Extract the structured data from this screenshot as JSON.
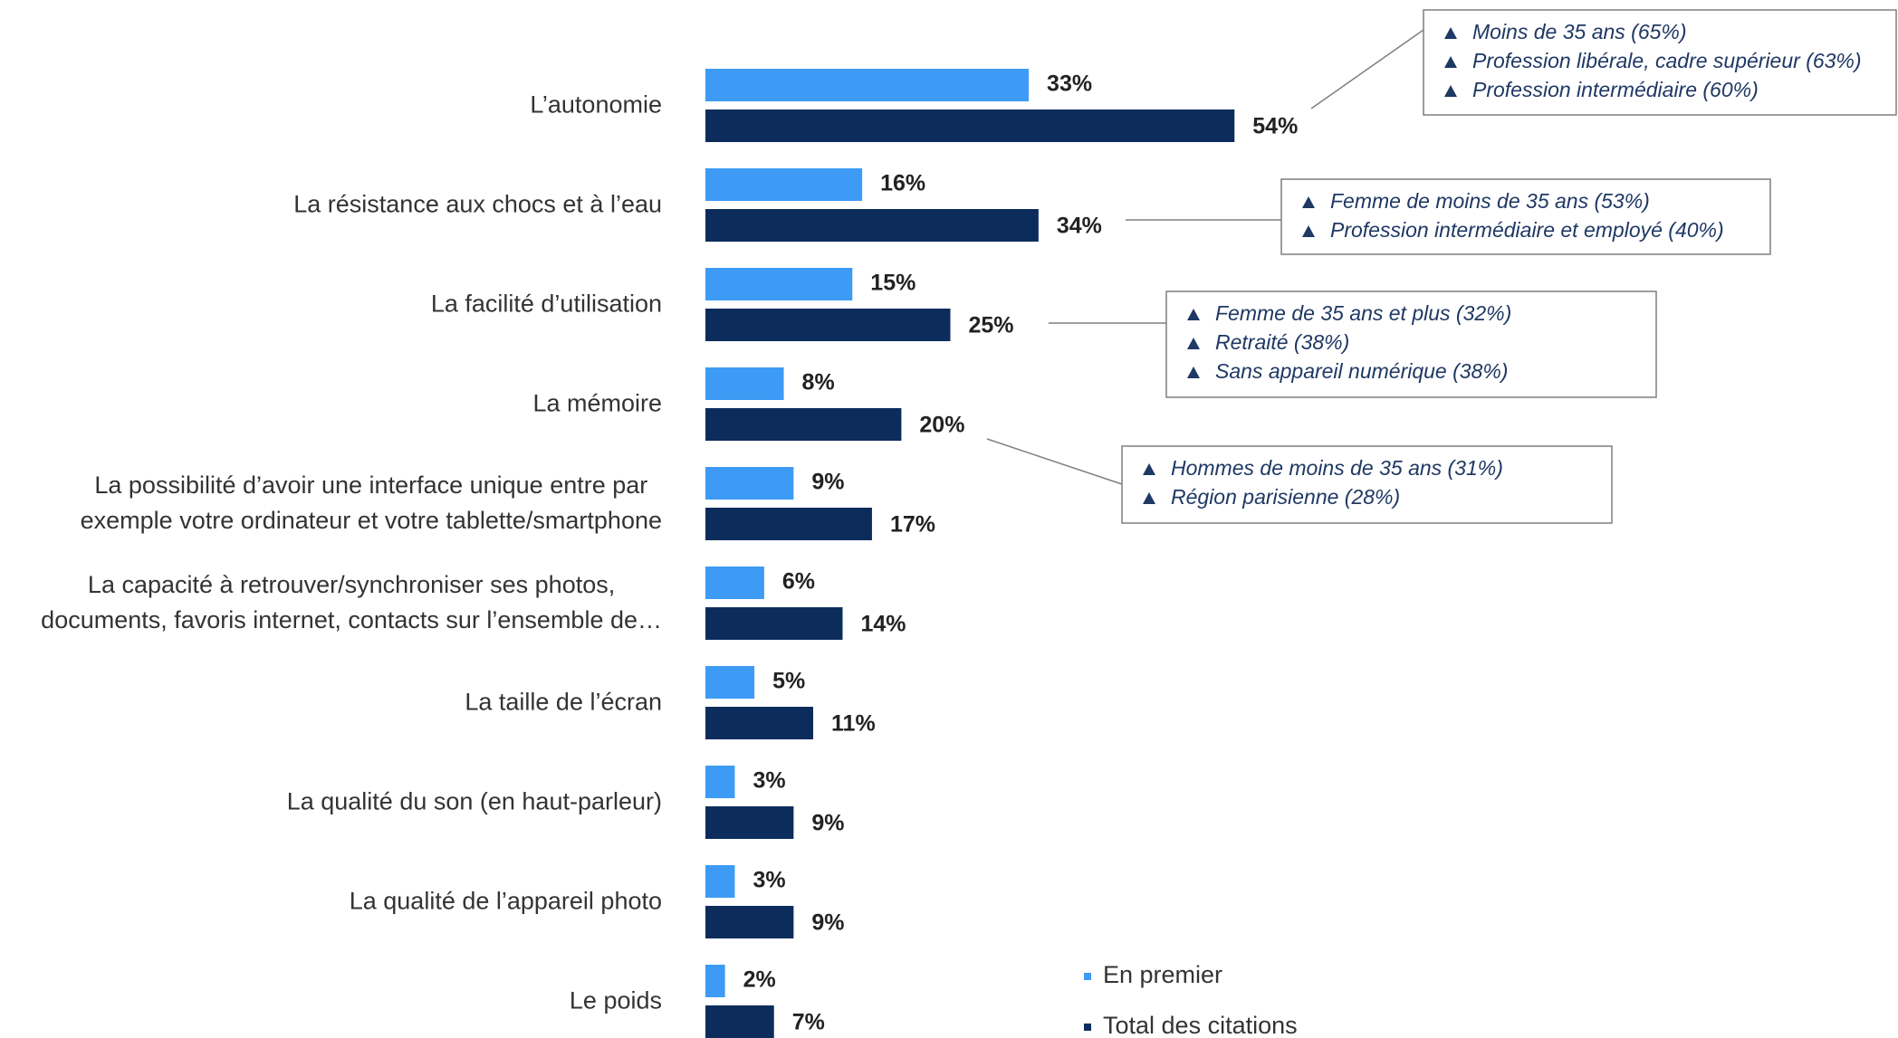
{
  "chart_data": {
    "type": "bar",
    "orientation": "horizontal",
    "categories": [
      "L’autonomie",
      "La résistance aux chocs et à l’eau",
      "La facilité d’utilisation",
      "La mémoire",
      "La possibilité d’avoir une interface unique entre par\nexemple votre ordinateur et votre tablette/smartphone",
      "La capacité à retrouver/synchroniser ses photos,\ndocuments, favoris internet, contacts sur l’ensemble de…",
      "La taille de l’écran",
      "La qualité du son (en haut-parleur)",
      "La qualité de l’appareil photo",
      "Le poids"
    ],
    "series": [
      {
        "name": "En premier",
        "color": "#3d9bf5",
        "values": [
          33,
          16,
          15,
          8,
          9,
          6,
          5,
          3,
          3,
          2
        ],
        "value_labels": [
          "33%",
          "16%",
          "15%",
          "8%",
          "9%",
          "6%",
          "5%",
          "3%",
          "3%",
          "2%"
        ]
      },
      {
        "name": "Total des citations",
        "color": "#0c2d5c",
        "values": [
          54,
          34,
          25,
          20,
          17,
          14,
          11,
          9,
          9,
          7
        ],
        "value_labels": [
          "54%",
          "34%",
          "25%",
          "20%",
          "17%",
          "14%",
          "11%",
          "9%",
          "9%",
          "7%"
        ]
      }
    ],
    "annotations": [
      {
        "items": [
          "Moins de 35 ans (65%)",
          "Profession libérale, cadre supérieur (63%)",
          "Profession intermédiaire (60%)"
        ]
      },
      {
        "items": [
          "Femme de moins de 35 ans (53%)",
          "Profession intermédiaire et employé (40%)"
        ]
      },
      {
        "items": [
          "Femme de 35 ans et plus (32%)",
          "Retraité (38%)",
          "Sans appareil numérique (38%)"
        ]
      },
      {
        "items": [
          "Hommes de moins de 35 ans (31%)",
          "Région parisienne (28%)"
        ]
      }
    ]
  }
}
